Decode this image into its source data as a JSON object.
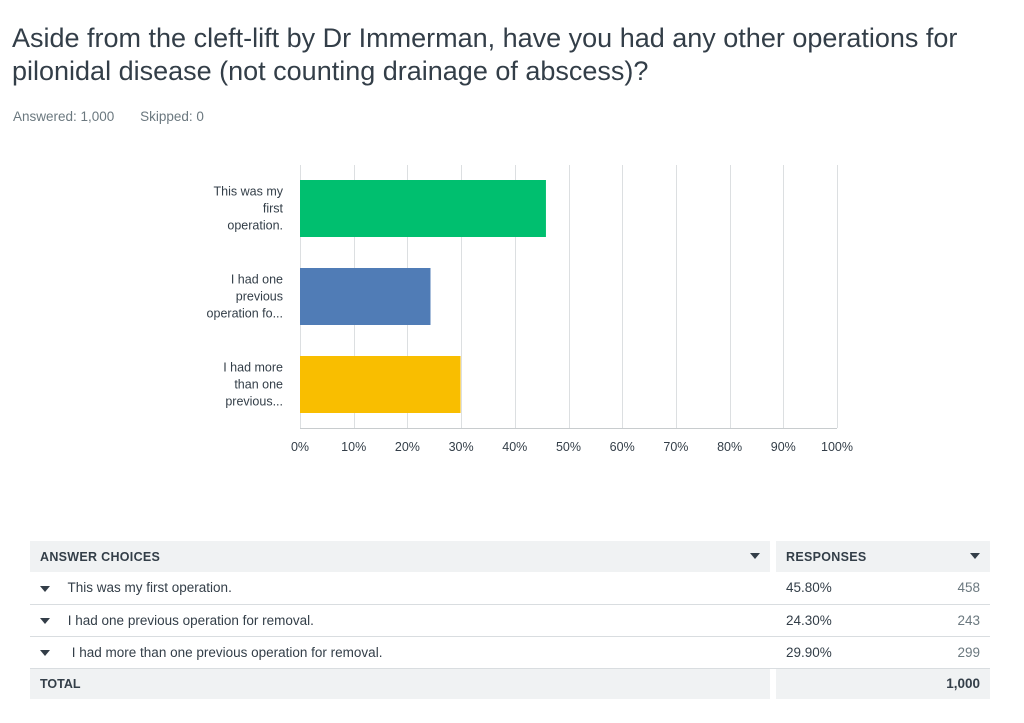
{
  "question": {
    "title": "Aside from the cleft-lift by Dr Immerman, have you had any other operations for pilonidal disease (not counting drainage of abscess)?",
    "answered": "Answered: 1,000",
    "skipped": "Skipped: 0"
  },
  "chart_data": {
    "type": "bar",
    "orientation": "horizontal",
    "categories": [
      [
        "This was my",
        "first",
        "operation."
      ],
      [
        "I had one",
        "previous",
        "operation fo..."
      ],
      [
        "I had more",
        "than one",
        "previous..."
      ]
    ],
    "values": [
      45.8,
      24.3,
      29.9
    ],
    "colors": [
      "#00bf6f",
      "#507cb6",
      "#f9be00"
    ],
    "xlim": [
      0,
      100
    ],
    "x_ticks": [
      0,
      10,
      20,
      30,
      40,
      50,
      60,
      70,
      80,
      90,
      100
    ],
    "x_tick_labels": [
      "0%",
      "10%",
      "20%",
      "30%",
      "40%",
      "50%",
      "60%",
      "70%",
      "80%",
      "90%",
      "100%"
    ],
    "grid": true,
    "title": "",
    "xlabel": "",
    "ylabel": ""
  },
  "table": {
    "header_choices": "ANSWER CHOICES",
    "header_responses": "RESPONSES",
    "rows": [
      {
        "choice": "This was my first operation.",
        "percent": "45.80%",
        "count": "458"
      },
      {
        "choice": "I had one previous operation for removal.",
        "percent": "24.30%",
        "count": "243"
      },
      {
        "choice": "I had more than one previous operation for removal.",
        "percent": "29.90%",
        "count": "299"
      }
    ],
    "total_label": "TOTAL",
    "total_count": "1,000"
  }
}
